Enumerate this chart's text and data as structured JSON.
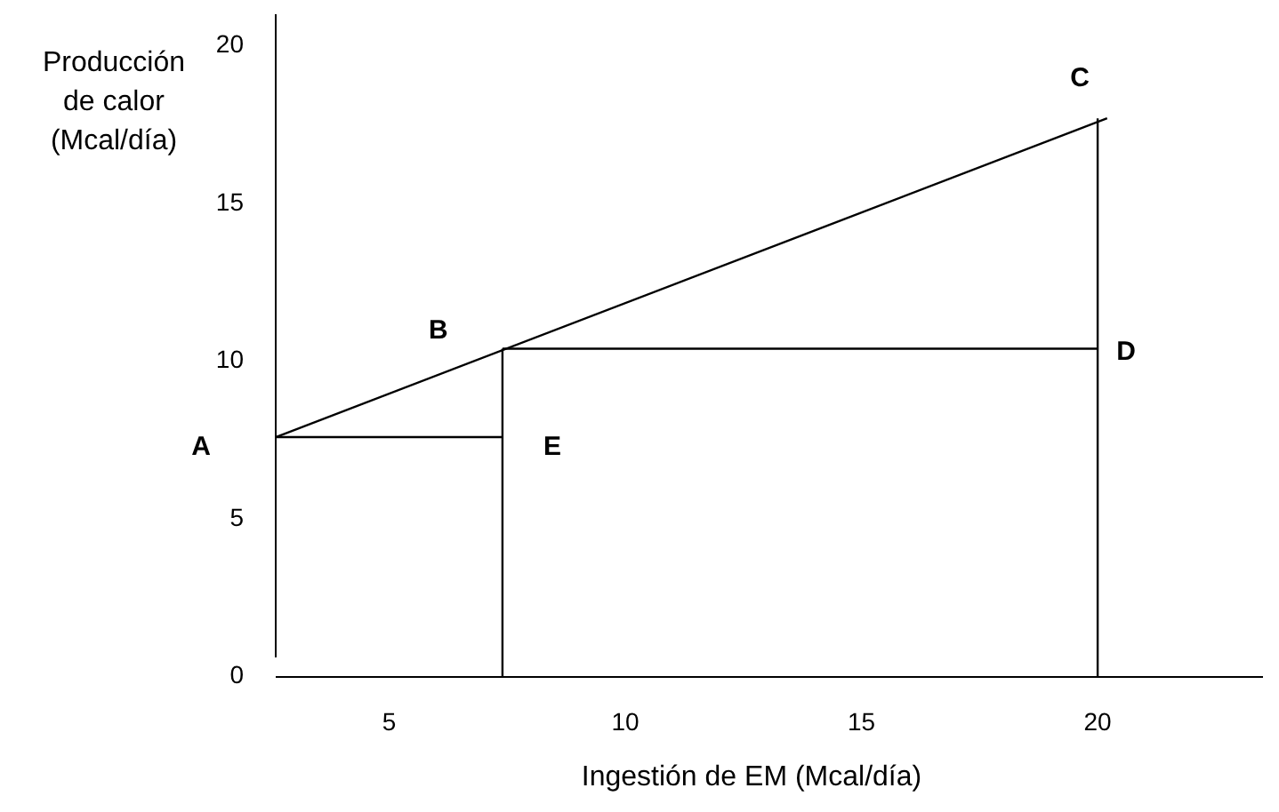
{
  "chart_data": {
    "type": "line",
    "xlabel": "Ingestión de EM (Mcal/día)",
    "ylabel": "Producción\nde calor\n(Mcal/día)",
    "xlim": [
      2.6,
      23.5
    ],
    "ylim": [
      0,
      21
    ],
    "xticks": [
      5,
      10,
      15,
      20
    ],
    "yticks": [
      0,
      5,
      10,
      15,
      20
    ],
    "marker": "none",
    "line_style": "solid",
    "series": [
      {
        "color": "#000000",
        "x": [
          2.6,
          20.2
        ],
        "values": [
          7.6,
          17.7
        ]
      },
      {
        "color": "#000000",
        "x": [
          2.6,
          7.4
        ],
        "values": [
          7.6,
          7.6
        ]
      },
      {
        "color": "#000000",
        "x": [
          7.4,
          7.4
        ],
        "values": [
          0,
          10.4
        ]
      },
      {
        "color": "#000000",
        "x": [
          7.4,
          20
        ],
        "values": [
          10.4,
          10.4
        ]
      },
      {
        "color": "#000000",
        "x": [
          20,
          20
        ],
        "values": [
          0,
          17.7
        ]
      }
    ],
    "annotations": [
      {
        "text": "A",
        "x": 2.6,
        "y": 7.6
      },
      {
        "text": "B",
        "x": 7.4,
        "y": 10.4
      },
      {
        "text": "C",
        "x": 20,
        "y": 17.7
      },
      {
        "text": "D",
        "x": 20,
        "y": 10.4
      },
      {
        "text": "E",
        "x": 7.4,
        "y": 7.6
      }
    ]
  }
}
